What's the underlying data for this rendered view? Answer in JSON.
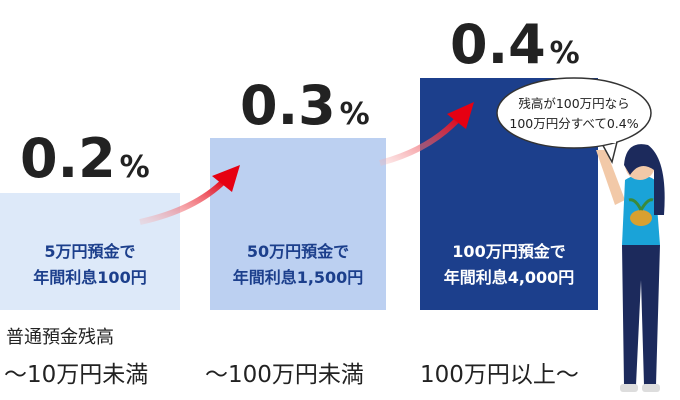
{
  "tiers": [
    {
      "rate": "0.2",
      "unit": "%",
      "lines": [
        "5万円預金で",
        "年間利息100円"
      ],
      "range_caption": "普通預金残高",
      "range": "～10万円未満"
    },
    {
      "rate": "0.3",
      "unit": "%",
      "lines": [
        "50万円預金で",
        "年間利息1,500円"
      ],
      "range": "～100万円未満"
    },
    {
      "rate": "0.4",
      "unit": "%",
      "lines": [
        "100万円預金で",
        "年間利息4,000円"
      ],
      "range": "100万円以上～"
    }
  ],
  "bubble": [
    "残高が100万円なら",
    "100万円分すべて0.4%"
  ]
}
